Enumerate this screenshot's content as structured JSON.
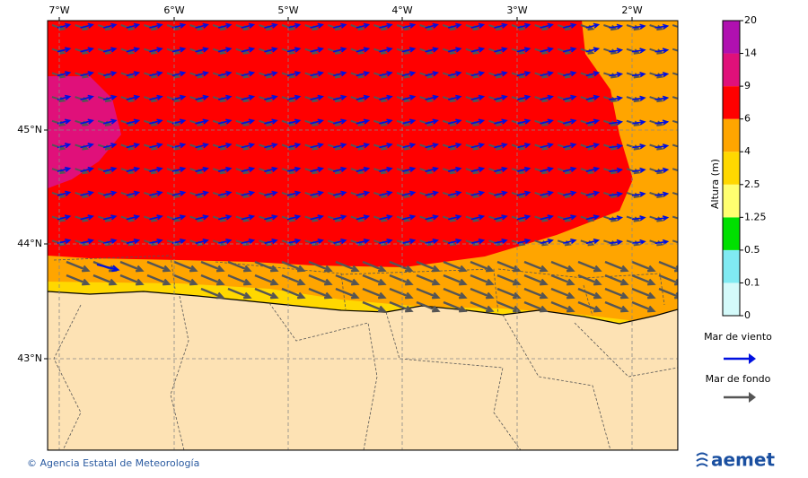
{
  "map": {
    "lon_ticks": [
      "7°W",
      "6°W",
      "5°W",
      "4°W",
      "3°W",
      "2°W"
    ],
    "lat_ticks": [
      "45°N",
      "44°N",
      "43°N"
    ]
  },
  "colorbar": {
    "title": "Altura (m)",
    "levels": [
      0,
      0.1,
      0.5,
      1.25,
      2.5,
      4,
      6,
      9,
      14,
      20
    ],
    "colors": [
      "#d4fafa",
      "#80eaf2",
      "#00e000",
      "#ffff70",
      "#ffd800",
      "#ffa500",
      "#ff0000",
      "#e0107a",
      "#b010b0"
    ]
  },
  "legend": [
    {
      "label": "Mar de viento",
      "color": "#0010e0"
    },
    {
      "label": "Mar de fondo",
      "color": "#555555"
    }
  ],
  "footer": {
    "credit": "© Agencia Estatal de Meteorología",
    "logo": "aemet"
  }
}
